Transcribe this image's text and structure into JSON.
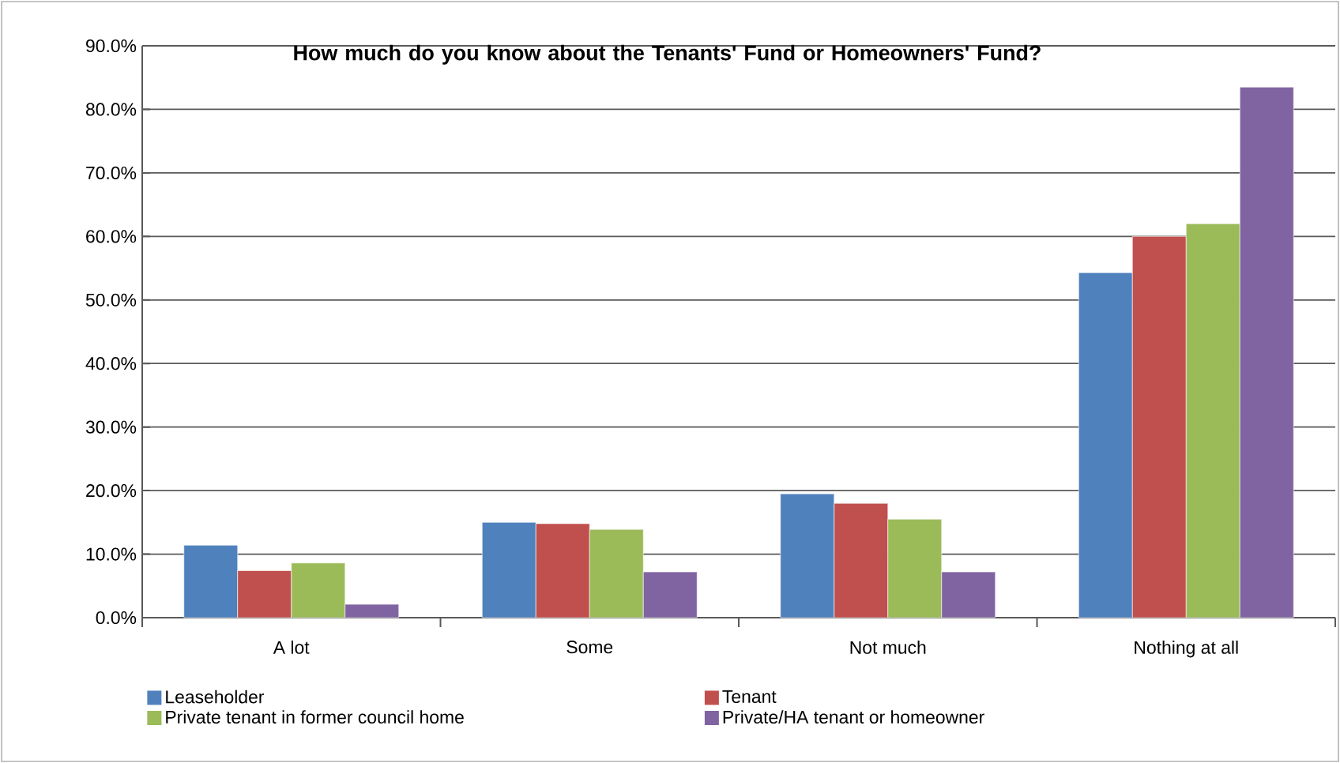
{
  "chart_data": {
    "type": "bar",
    "title": "How much do you know about the Tenants' Fund or Homeowners' Fund?",
    "categories": [
      "A lot",
      "Some",
      "Not much",
      "Nothing at all"
    ],
    "series": [
      {
        "name": "Leaseholder",
        "color": "#4f81bd",
        "values": [
          11.4,
          15.0,
          19.5,
          54.3
        ]
      },
      {
        "name": "Tenant",
        "color": "#c0504d",
        "values": [
          7.4,
          14.8,
          18.0,
          60.0
        ]
      },
      {
        "name": "Private tenant in former council home",
        "color": "#9bbb59",
        "values": [
          8.6,
          13.9,
          15.5,
          62.0
        ]
      },
      {
        "name": "Private/HA tenant or homeowner",
        "color": "#8064a2",
        "values": [
          2.1,
          7.2,
          7.2,
          83.5
        ]
      }
    ],
    "ylim": [
      0,
      90
    ],
    "yticks": [
      {
        "value": 0,
        "label": "0.0%"
      },
      {
        "value": 10,
        "label": "10.0%"
      },
      {
        "value": 20,
        "label": "20.0%"
      },
      {
        "value": 30,
        "label": "30.0%"
      },
      {
        "value": 40,
        "label": "40.0%"
      },
      {
        "value": 50,
        "label": "50.0%"
      },
      {
        "value": 60,
        "label": "60.0%"
      },
      {
        "value": 70,
        "label": "70.0%"
      },
      {
        "value": 80,
        "label": "80.0%"
      },
      {
        "value": 90,
        "label": "90.0%"
      }
    ],
    "grid": "y",
    "legend": "bottom"
  }
}
